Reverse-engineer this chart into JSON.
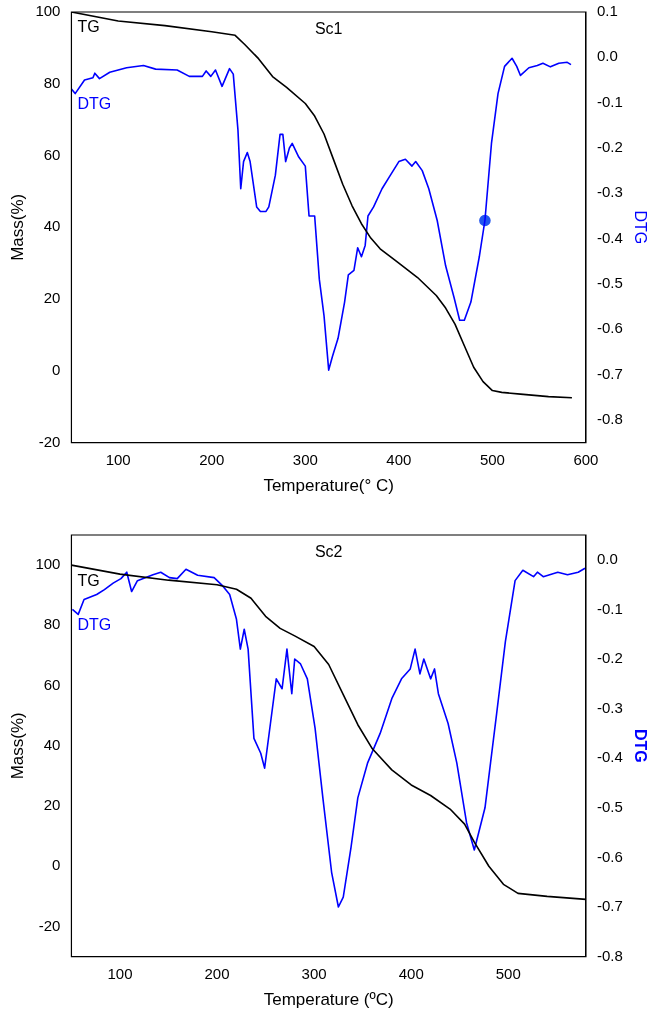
{
  "chart_data": [
    {
      "type": "line",
      "title": "Sc1",
      "xlabel": "Temperature(° C)",
      "ylabel": "Mass(%)",
      "y2label": "DTG",
      "xlim": [
        50,
        600
      ],
      "xticks": [
        100,
        200,
        300,
        400,
        500,
        600
      ],
      "ylim": [
        -20,
        100
      ],
      "yticks": [
        -20,
        0,
        20,
        40,
        60,
        80,
        100
      ],
      "y2lim": [
        -0.85,
        0.1
      ],
      "y2ticks": [
        -0.8,
        -0.7,
        -0.6,
        -0.5,
        -0.4,
        -0.3,
        -0.2,
        -0.1,
        {
          "value": 0,
          "label": "0.0"
        },
        0.1
      ],
      "grid": false,
      "legend": false,
      "marker": "none",
      "series": [
        {
          "name": "TG",
          "color": "#000000",
          "x": [
            50,
            100,
            150,
            200,
            225,
            235,
            250,
            265,
            280,
            300,
            310,
            320,
            330,
            340,
            350,
            360,
            370,
            380,
            400,
            420,
            440,
            450,
            460,
            470,
            480,
            490,
            500,
            510,
            530,
            560,
            585
          ],
          "values": [
            100,
            97.5,
            96.2,
            94.5,
            93.5,
            91,
            87,
            82,
            79,
            74.5,
            71,
            66,
            59,
            52,
            46,
            41,
            37,
            34,
            30,
            26,
            21,
            17.5,
            13,
            7,
            1,
            -3,
            -5.5,
            -6,
            -6.5,
            -7.2,
            -7.5
          ]
        },
        {
          "name": "DTG",
          "color": "#0000ff",
          "axis": "y2",
          "x": [
            50,
            54,
            64,
            73,
            75,
            80,
            91,
            109,
            127,
            140,
            163,
            176,
            190,
            194,
            199,
            204,
            211,
            219,
            223,
            228,
            231,
            234,
            238,
            241,
            248,
            252,
            258,
            261,
            268,
            273,
            276,
            279,
            283,
            286,
            293,
            300,
            304,
            310,
            315,
            320,
            325,
            329,
            335,
            342,
            346,
            352,
            356,
            360,
            364,
            367,
            373,
            382,
            391,
            400,
            407,
            414,
            418,
            425,
            432,
            441,
            450,
            459,
            465,
            470,
            477,
            486,
            492,
            499,
            506,
            513,
            521,
            526,
            530,
            539,
            548,
            554,
            562,
            571,
            580,
            584
          ],
          "values": [
            -0.07,
            -0.08,
            -0.05,
            -0.045,
            -0.035,
            -0.047,
            -0.033,
            -0.023,
            -0.018,
            -0.026,
            -0.028,
            -0.042,
            -0.042,
            -0.03,
            -0.042,
            -0.028,
            -0.064,
            -0.025,
            -0.037,
            -0.16,
            -0.29,
            -0.23,
            -0.21,
            -0.23,
            -0.33,
            -0.34,
            -0.34,
            -0.33,
            -0.26,
            -0.17,
            -0.17,
            -0.23,
            -0.2,
            -0.19,
            -0.22,
            -0.24,
            -0.35,
            -0.35,
            -0.49,
            -0.57,
            -0.69,
            -0.66,
            -0.62,
            -0.54,
            -0.48,
            -0.47,
            -0.42,
            -0.44,
            -0.415,
            -0.35,
            -0.33,
            -0.29,
            -0.26,
            -0.23,
            -0.225,
            -0.24,
            -0.23,
            -0.25,
            -0.29,
            -0.36,
            -0.46,
            -0.53,
            -0.58,
            -0.58,
            -0.54,
            -0.44,
            -0.36,
            -0.19,
            -0.08,
            -0.02,
            -0.002,
            -0.02,
            -0.04,
            -0.023,
            -0.018,
            -0.013,
            -0.021,
            -0.013,
            -0.011,
            -0.016
          ]
        },
        {
          "type": "scatter",
          "marker": "circle",
          "color": "#2255ee",
          "axis": "y2",
          "x": [
            492
          ],
          "values": [
            -0.36
          ]
        }
      ]
    },
    {
      "type": "line",
      "title": "Sc2",
      "xlabel": "Temperature (ºC)",
      "ylabel": "Mass(%)",
      "y2label": "DTG",
      "xlim": [
        50,
        580
      ],
      "xticks": [
        100,
        200,
        300,
        400,
        500
      ],
      "ylim": [
        -30,
        110
      ],
      "yticks": [
        -20,
        0,
        20,
        40,
        60,
        80,
        100
      ],
      "y2lim": [
        -0.8,
        0.05
      ],
      "y2ticks": [
        -0.8,
        -0.7,
        -0.6,
        -0.5,
        -0.4,
        -0.3,
        -0.2,
        -0.1,
        {
          "value": 0,
          "label": "0.0"
        }
      ],
      "grid": false,
      "legend": false,
      "marker": "none",
      "series": [
        {
          "name": "TG",
          "color": "#000000",
          "x": [
            50,
            100,
            150,
            200,
            220,
            235,
            250,
            265,
            280,
            300,
            315,
            330,
            345,
            360,
            380,
            400,
            420,
            440,
            455,
            465,
            480,
            495,
            510,
            540,
            580
          ],
          "values": [
            100,
            97,
            95,
            93.5,
            92,
            89,
            83,
            79,
            76.5,
            73,
            67,
            57,
            47,
            39,
            32,
            27,
            23.5,
            19,
            14,
            8,
            0,
            -6,
            -9,
            -10,
            -11
          ]
        },
        {
          "name": "DTG",
          "color": "#0000ff",
          "axis": "y2",
          "x": [
            51,
            57,
            63,
            76,
            84,
            93,
            101,
            107,
            112,
            118,
            126,
            134,
            142,
            151,
            159,
            168,
            180,
            197,
            205,
            213,
            220,
            224,
            228,
            232,
            238,
            245,
            249,
            255,
            261,
            267,
            272,
            277,
            280,
            286,
            293,
            301,
            309,
            318,
            325,
            330,
            338,
            345,
            355,
            368,
            380,
            390,
            399,
            404,
            409,
            413,
            420,
            424,
            428,
            438,
            447,
            457,
            465,
            476,
            488,
            497,
            507,
            515,
            526,
            530,
            536,
            551,
            561,
            572,
            579
          ],
          "values": [
            -0.1,
            -0.11,
            -0.08,
            -0.07,
            -0.06,
            -0.047,
            -0.038,
            -0.025,
            -0.064,
            -0.042,
            -0.036,
            -0.03,
            -0.025,
            -0.036,
            -0.038,
            -0.019,
            -0.031,
            -0.036,
            -0.051,
            -0.07,
            -0.12,
            -0.18,
            -0.14,
            -0.18,
            -0.36,
            -0.39,
            -0.42,
            -0.33,
            -0.24,
            -0.26,
            -0.18,
            -0.27,
            -0.2,
            -0.21,
            -0.24,
            -0.34,
            -0.48,
            -0.63,
            -0.7,
            -0.68,
            -0.58,
            -0.48,
            -0.41,
            -0.35,
            -0.28,
            -0.24,
            -0.22,
            -0.18,
            -0.23,
            -0.2,
            -0.24,
            -0.22,
            -0.27,
            -0.33,
            -0.41,
            -0.53,
            -0.585,
            -0.5,
            -0.31,
            -0.165,
            -0.042,
            -0.021,
            -0.034,
            -0.025,
            -0.034,
            -0.025,
            -0.03,
            -0.025,
            -0.017
          ]
        }
      ]
    }
  ]
}
